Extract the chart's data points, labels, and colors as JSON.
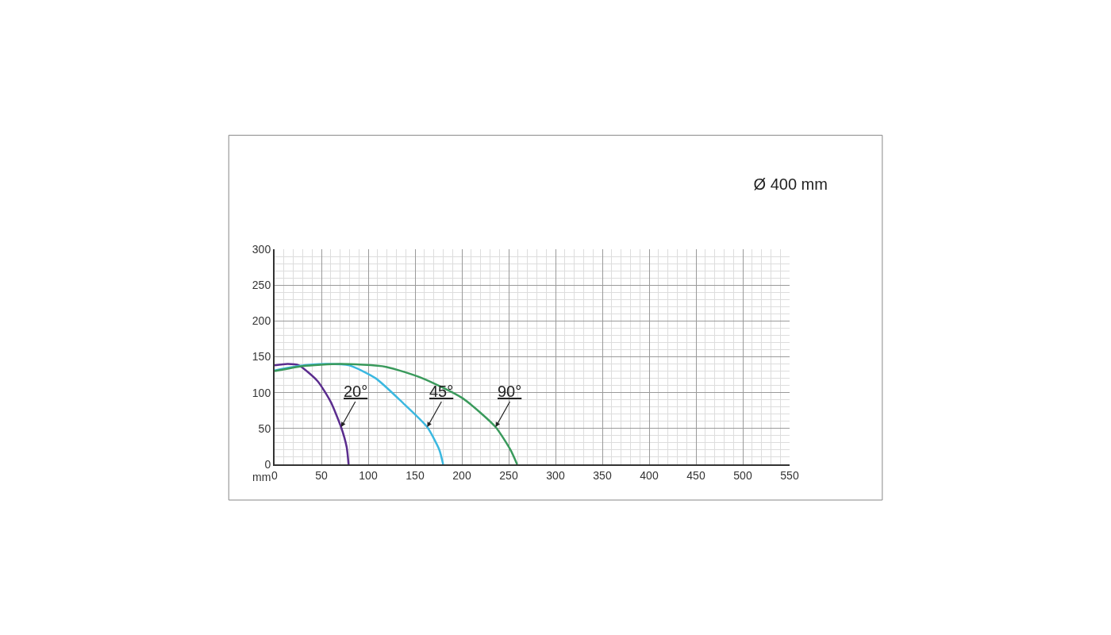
{
  "chart_data": {
    "type": "line",
    "title": "Ø 400 mm",
    "xlabel": "mm",
    "xlim": [
      0,
      550
    ],
    "xticks": [
      0,
      50,
      100,
      150,
      200,
      250,
      300,
      350,
      400,
      450,
      500,
      550
    ],
    "ylim": [
      0,
      300
    ],
    "yticks": [
      0,
      50,
      100,
      150,
      200,
      250,
      300
    ],
    "grid": true,
    "marker": "none",
    "line_style": "solid",
    "series": [
      {
        "color": "#5b2d8e",
        "x": [
          0,
          14,
          26,
          46,
          60,
          71,
          77,
          79
        ],
        "values": [
          138,
          140,
          138,
          116,
          87,
          52,
          24,
          0
        ]
      },
      {
        "color": "#3bb8e0",
        "x": [
          0,
          25,
          54,
          80,
          108,
          136,
          163,
          176,
          180
        ],
        "values": [
          131,
          137,
          140,
          138,
          120,
          87,
          52,
          20,
          0
        ]
      },
      {
        "color": "#3a9a5c",
        "x": [
          0,
          30,
          70,
          119,
          158,
          201,
          236,
          252,
          259
        ],
        "values": [
          130,
          137,
          140,
          136,
          120,
          92,
          52,
          20,
          0
        ]
      }
    ],
    "annotations": [
      {
        "text": "20°",
        "x": 71,
        "y": 52
      },
      {
        "text": "45°",
        "x": 163,
        "y": 52
      },
      {
        "text": "90°",
        "x": 236,
        "y": 52
      }
    ]
  }
}
